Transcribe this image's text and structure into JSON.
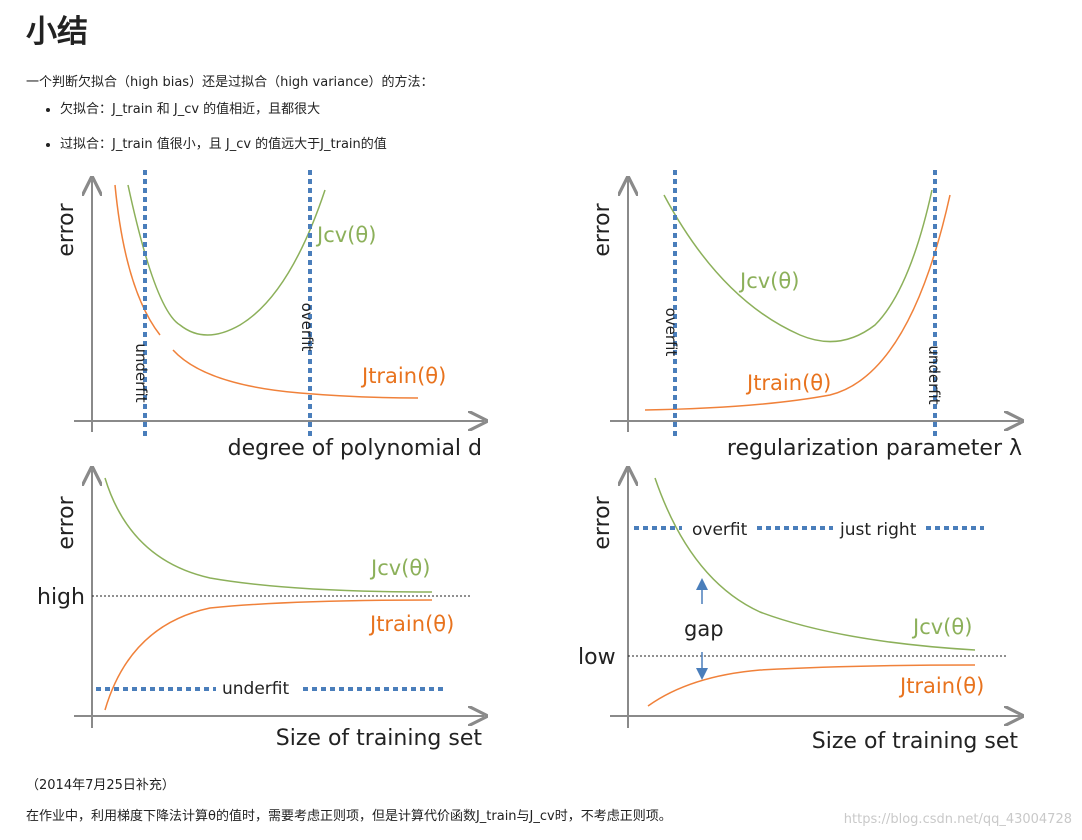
{
  "heading": "小结",
  "intro": "一个判断欠拟合（high bias）还是过拟合（high variance）的方法：",
  "bullets": [
    "欠拟合：J_train 和 J_cv 的值相近，且都很大",
    "过拟合：J_train 值很小，且 J_cv 的值远大于J_train的值"
  ],
  "figure": {
    "panels": [
      {
        "ylabel": "error",
        "xlabel": "degree of polynomial d",
        "cv_label": "Jcv(θ)",
        "train_label": "Jtrain(θ)",
        "left_line_label": "underfit",
        "right_line_label": "overfit"
      },
      {
        "ylabel": "error",
        "xlabel": "regularization parameter λ",
        "cv_label": "Jcv(θ)",
        "train_label": "Jtrain(θ)",
        "left_line_label": "overfit",
        "right_line_label": "underfit"
      },
      {
        "ylabel": "error",
        "xlabel": "Size of training set",
        "level_label": "high",
        "cv_label": "Jcv(θ)",
        "train_label": "Jtrain(θ)",
        "dotted_label": "underfit"
      },
      {
        "ylabel": "error",
        "xlabel": "Size of training set",
        "level_label": "low",
        "cv_label": "Jcv(θ)",
        "train_label": "Jtrain(θ)",
        "dotted_label_left": "overfit",
        "dotted_label_right": "just right",
        "gap_label": "gap"
      }
    ],
    "colors": {
      "cv": "#8cb05a",
      "train": "#f0813a",
      "train_text": "#e8731e",
      "dotted": "#4a7ebb",
      "axis": "#8a8a8a"
    }
  },
  "note_date": "（2014年7月25日补充）",
  "note_text": "在作业中，利用梯度下降法计算θ的值时，需要考虑正则项，但是计算代价函数J_train与J_cv时，不考虑正则项。",
  "watermark": "https://blog.csdn.net/qq_43004728"
}
